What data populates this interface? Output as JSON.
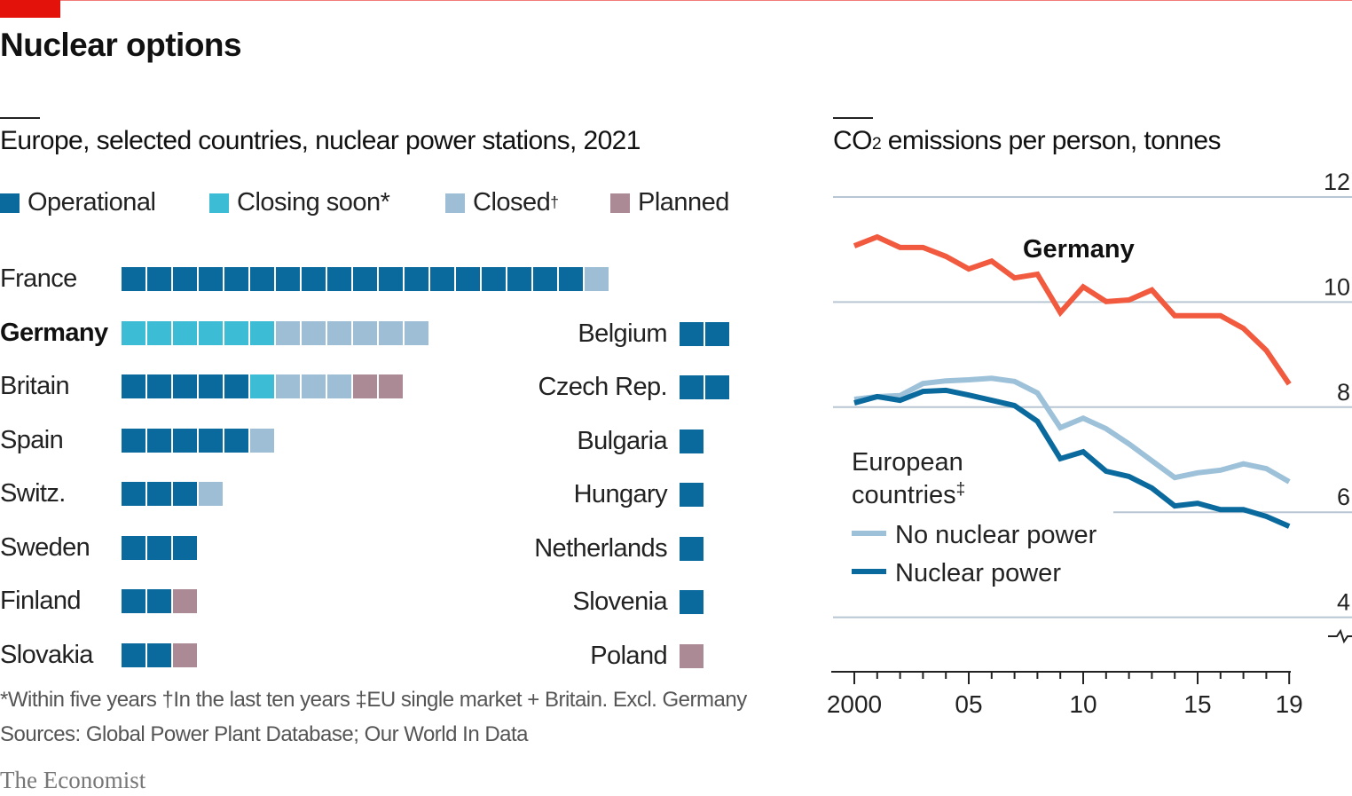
{
  "title": "Nuclear options",
  "left_panel": {
    "subtitle": "Europe, selected countries, nuclear power stations, 2021",
    "legend": [
      {
        "key": "operational",
        "label": "Operational",
        "sup": "",
        "color": "#0a6a9e"
      },
      {
        "key": "closing",
        "label": "Closing soon*",
        "sup": "",
        "color": "#3dbcd6"
      },
      {
        "key": "closed",
        "label": "Closed",
        "sup": "†",
        "color": "#9dbed4"
      },
      {
        "key": "planned",
        "label": "Planned",
        "sup": "",
        "color": "#ab8a95"
      }
    ]
  },
  "right_panel": {
    "subtitle_pre": "CO",
    "subtitle_sub": "2",
    "subtitle_post": " emissions per person, tonnes",
    "series_label_germany": "Germany",
    "legend_heading_line1": "European",
    "legend_heading_line2": "countries",
    "legend_heading_sup": "‡",
    "legend_items": [
      {
        "label": "No nuclear power",
        "color": "#9dc1d9"
      },
      {
        "label": "Nuclear power",
        "color": "#0a6a9e"
      }
    ]
  },
  "footnote": "*Within five years   †In the last ten years   ‡EU single market + Britain. Excl. Germany",
  "source": "Sources: Global Power Plant Database; Our World In Data",
  "brand": "The Economist",
  "chart_data": [
    {
      "type": "table",
      "title": "Europe, selected countries, nuclear power stations, 2021",
      "columns": [
        "country",
        "operational",
        "closing_soon",
        "closed",
        "planned"
      ],
      "rows": [
        {
          "country": "France",
          "operational": 18,
          "closing_soon": 0,
          "closed": 1,
          "planned": 0,
          "bold": false
        },
        {
          "country": "Germany",
          "operational": 0,
          "closing_soon": 6,
          "closed": 6,
          "planned": 0,
          "bold": true
        },
        {
          "country": "Britain",
          "operational": 5,
          "closing_soon": 1,
          "closed": 3,
          "planned": 2,
          "bold": false
        },
        {
          "country": "Spain",
          "operational": 5,
          "closing_soon": 0,
          "closed": 1,
          "planned": 0,
          "bold": false
        },
        {
          "country": "Switz.",
          "operational": 3,
          "closing_soon": 0,
          "closed": 1,
          "planned": 0,
          "bold": false
        },
        {
          "country": "Sweden",
          "operational": 3,
          "closing_soon": 0,
          "closed": 0,
          "planned": 0,
          "bold": false
        },
        {
          "country": "Finland",
          "operational": 2,
          "closing_soon": 0,
          "closed": 0,
          "planned": 1,
          "bold": false
        },
        {
          "country": "Slovakia",
          "operational": 2,
          "closing_soon": 0,
          "closed": 0,
          "planned": 1,
          "bold": false
        },
        {
          "country": "Belgium",
          "operational": 2,
          "closing_soon": 0,
          "closed": 0,
          "planned": 0,
          "bold": false
        },
        {
          "country": "Czech Rep.",
          "operational": 2,
          "closing_soon": 0,
          "closed": 0,
          "planned": 0,
          "bold": false
        },
        {
          "country": "Bulgaria",
          "operational": 1,
          "closing_soon": 0,
          "closed": 0,
          "planned": 0,
          "bold": false
        },
        {
          "country": "Hungary",
          "operational": 1,
          "closing_soon": 0,
          "closed": 0,
          "planned": 0,
          "bold": false
        },
        {
          "country": "Netherlands",
          "operational": 1,
          "closing_soon": 0,
          "closed": 0,
          "planned": 0,
          "bold": false
        },
        {
          "country": "Slovenia",
          "operational": 1,
          "closing_soon": 0,
          "closed": 0,
          "planned": 0,
          "bold": false
        },
        {
          "country": "Poland",
          "operational": 0,
          "closing_soon": 0,
          "closed": 0,
          "planned": 1,
          "bold": false
        }
      ]
    },
    {
      "type": "line",
      "title": "CO2 emissions per person, tonnes",
      "xlabel": "",
      "ylabel": "",
      "x": [
        2000,
        2001,
        2002,
        2003,
        2004,
        2005,
        2006,
        2007,
        2008,
        2009,
        2010,
        2011,
        2012,
        2013,
        2014,
        2015,
        2016,
        2017,
        2018,
        2019
      ],
      "xticks": [
        2000,
        2005,
        2010,
        2015,
        2019
      ],
      "xtick_labels": [
        "2000",
        "05",
        "10",
        "15",
        "19"
      ],
      "yticks": [
        4,
        6,
        8,
        10,
        12
      ],
      "ytick_labels": [
        "4",
        "6",
        "8",
        "10",
        "12"
      ],
      "ylim": [
        3.5,
        12
      ],
      "xlim": [
        1999.1,
        2019
      ],
      "grid": true,
      "y_axis_break": true,
      "series": [
        {
          "name": "Germany",
          "color": "#f15a3e",
          "values": [
            11.07,
            11.24,
            11.04,
            11.04,
            10.87,
            10.63,
            10.78,
            10.46,
            10.53,
            9.8,
            10.29,
            10.01,
            10.04,
            10.23,
            9.74,
            9.74,
            9.74,
            9.5,
            9.08,
            8.44
          ]
        },
        {
          "name": "No nuclear power",
          "color": "#9dc1d9",
          "values": [
            8.15,
            8.2,
            8.22,
            8.45,
            8.5,
            8.52,
            8.55,
            8.49,
            8.27,
            7.61,
            7.79,
            7.59,
            7.3,
            6.98,
            6.66,
            6.75,
            6.8,
            6.92,
            6.83,
            6.58
          ]
        },
        {
          "name": "Nuclear power",
          "color": "#0a6a9e",
          "values": [
            8.08,
            8.2,
            8.13,
            8.3,
            8.32,
            8.23,
            8.13,
            8.03,
            7.73,
            7.02,
            7.15,
            6.78,
            6.68,
            6.46,
            6.12,
            6.17,
            6.05,
            6.05,
            5.92,
            5.73
          ]
        }
      ]
    }
  ]
}
